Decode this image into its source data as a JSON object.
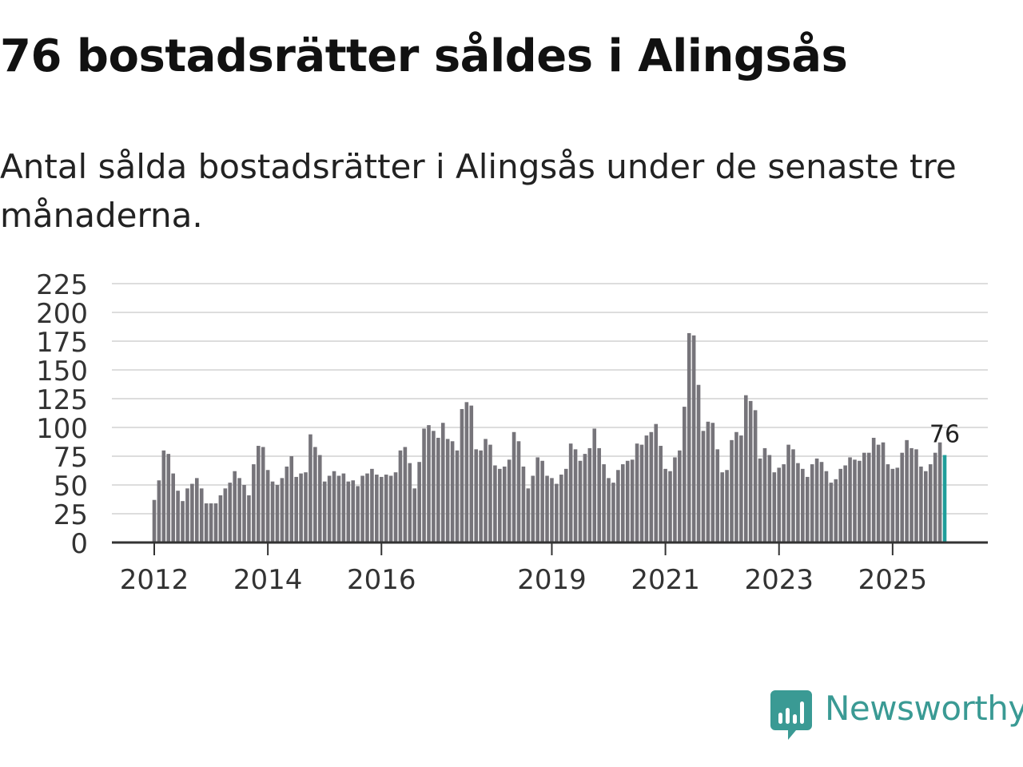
{
  "header": {
    "title": "76 bostadsrätter såldes i Alingsås",
    "subtitle": "Antal sålda bostadsrätter i Alingsås under de senaste tre månaderna."
  },
  "brand": {
    "name": "Newsworthy"
  },
  "colors": {
    "bar": "#76747a",
    "highlight": "#1f9e9a",
    "grid": "#dddddd",
    "axis": "#333333",
    "brand": "#3a9a94"
  },
  "chart_data": {
    "type": "bar",
    "title": "Antal sålda bostadsrätter i Alingsås under de senaste tre månaderna",
    "xlabel": "",
    "ylabel": "",
    "ylim": [
      0,
      225
    ],
    "yticks": [
      "0",
      "25",
      "50",
      "75",
      "100",
      "125",
      "150",
      "175",
      "200",
      "225"
    ],
    "x_start": "2012-01",
    "x_tick_labels": [
      {
        "label": "2012",
        "month_index": 0
      },
      {
        "label": "2014",
        "month_index": 24
      },
      {
        "label": "2016",
        "month_index": 48
      },
      {
        "label": "2019",
        "month_index": 84
      },
      {
        "label": "2021",
        "month_index": 108
      },
      {
        "label": "2023",
        "month_index": 132
      },
      {
        "label": "2025",
        "month_index": 156
      }
    ],
    "grid": true,
    "highlight_label": "76",
    "series": [
      {
        "name": "Antal sålda bostadsrätter",
        "values": [
          37,
          54,
          80,
          77,
          60,
          45,
          36,
          47,
          51,
          56,
          47,
          34,
          34,
          34,
          41,
          47,
          52,
          62,
          56,
          50,
          41,
          68,
          84,
          83,
          63,
          53,
          50,
          56,
          66,
          75,
          57,
          60,
          61,
          94,
          83,
          76,
          53,
          58,
          62,
          58,
          60,
          53,
          54,
          49,
          58,
          60,
          64,
          59,
          57,
          59,
          58,
          61,
          80,
          83,
          69,
          47,
          70,
          99,
          102,
          97,
          91,
          104,
          90,
          88,
          80,
          116,
          122,
          119,
          81,
          80,
          90,
          85,
          67,
          64,
          66,
          72,
          96,
          88,
          66,
          47,
          58,
          74,
          71,
          58,
          56,
          51,
          59,
          64,
          86,
          81,
          71,
          77,
          82,
          99,
          82,
          68,
          56,
          52,
          63,
          68,
          71,
          72,
          86,
          85,
          93,
          96,
          103,
          84,
          64,
          62,
          74,
          80,
          118,
          182,
          180,
          137,
          97,
          105,
          104,
          81,
          61,
          63,
          89,
          96,
          93,
          128,
          123,
          115,
          73,
          82,
          76,
          61,
          65,
          68,
          85,
          81,
          69,
          64,
          57,
          68,
          73,
          70,
          62,
          52,
          55,
          64,
          67,
          74,
          72,
          71,
          78,
          78,
          91,
          85,
          87,
          68,
          64,
          65,
          78,
          89,
          82,
          81,
          66,
          62,
          68,
          78,
          87,
          76
        ]
      }
    ]
  }
}
